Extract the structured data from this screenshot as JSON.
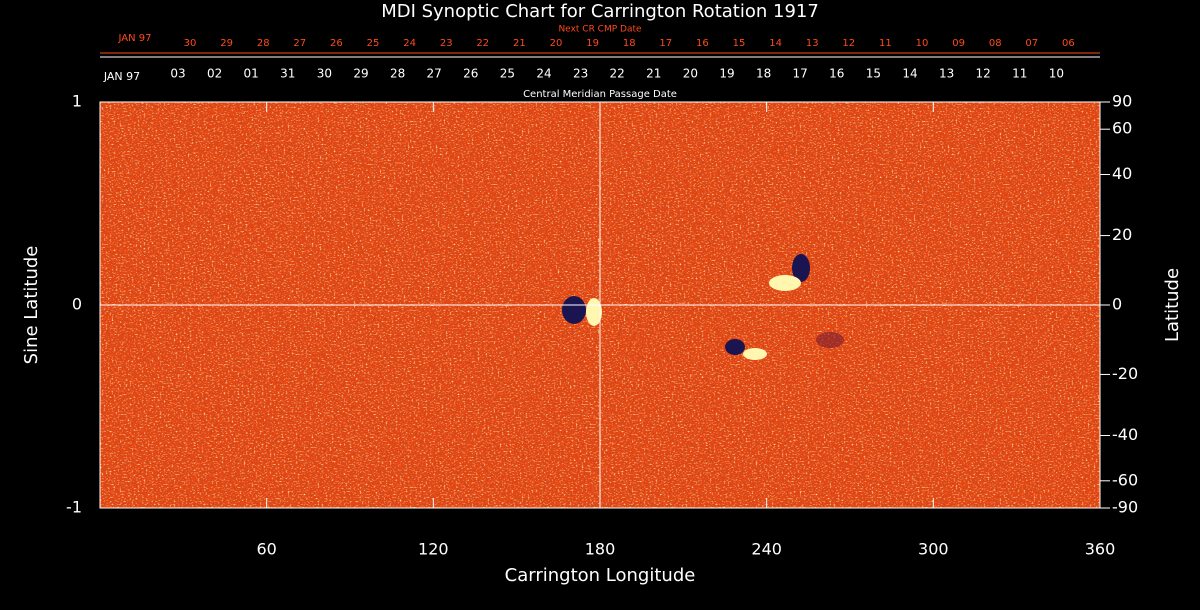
{
  "chart_data": {
    "type": "synoptic_map",
    "title": "MDI Synoptic Chart for Carrington Rotation 1917",
    "xlabel": "Carrington Longitude",
    "ylabel": "Sine Latitude",
    "y2label": "Latitude",
    "xlim": [
      0,
      360
    ],
    "xticks": [
      60,
      120,
      180,
      240,
      300,
      360
    ],
    "ylim": [
      -1,
      1
    ],
    "yticks": [
      -1,
      0,
      1
    ],
    "y2lim": [
      -90,
      90
    ],
    "y2ticks": [
      90,
      60,
      40,
      20,
      0,
      -20,
      -40,
      -60,
      -90
    ],
    "y2_scale": "sine",
    "reference_lines": {
      "x": 180,
      "y": 0
    },
    "cmp_axis": {
      "label": "Central Meridian Passage Date",
      "first": "JAN 97",
      "color": "#ffffff",
      "categories": [
        "03",
        "02",
        "01",
        "31",
        "30",
        "29",
        "28",
        "27",
        "26",
        "25",
        "24",
        "23",
        "22",
        "21",
        "20",
        "19",
        "18",
        "17",
        "16",
        "15",
        "14",
        "13",
        "12",
        "11",
        "10"
      ]
    },
    "next_axis": {
      "label": "Next CR CMP Date",
      "first": "JAN 97",
      "color": "#ff4a1c",
      "categories": [
        "30",
        "29",
        "28",
        "27",
        "26",
        "25",
        "24",
        "23",
        "22",
        "21",
        "20",
        "19",
        "18",
        "17",
        "16",
        "15",
        "14",
        "13",
        "12",
        "11",
        "10",
        "09",
        "08",
        "07",
        "06"
      ]
    }
  }
}
